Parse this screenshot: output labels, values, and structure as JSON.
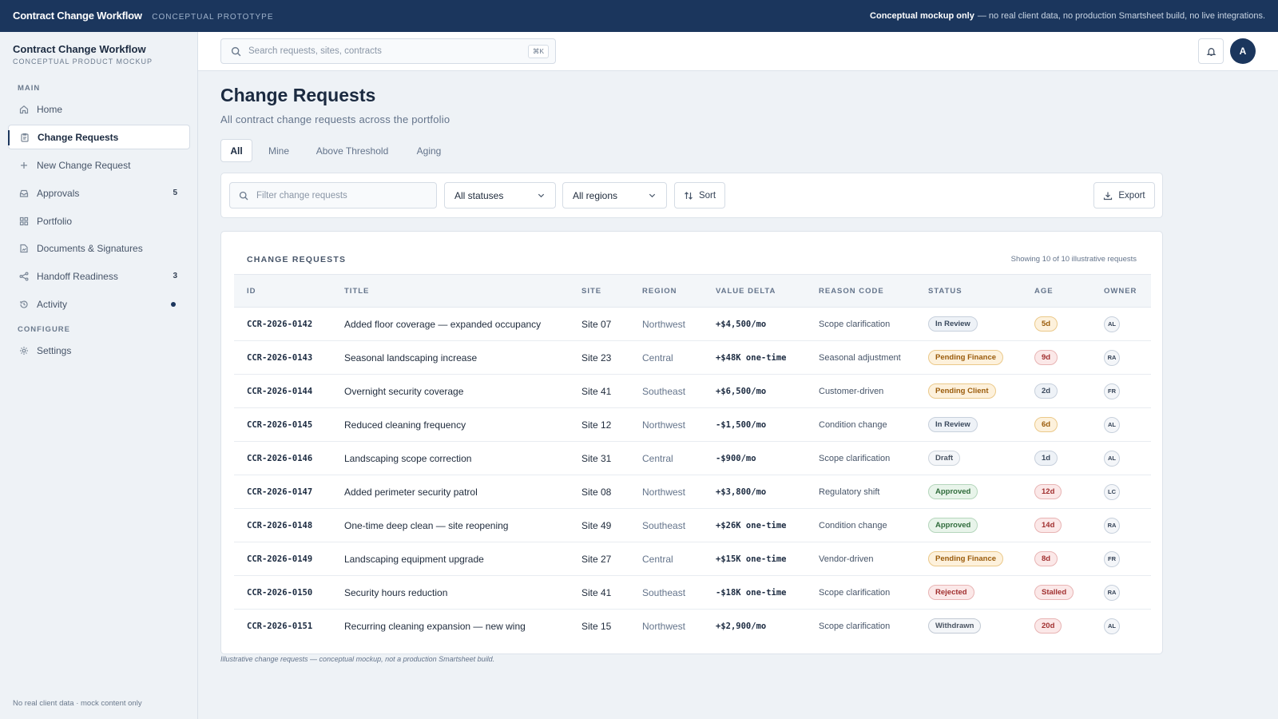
{
  "banner": {
    "title": "Contract Change Workflow",
    "subtitle": "CONCEPTUAL PROTOTYPE",
    "note_bold": "Conceptual mockup only",
    "note": "— no real client data, no production Smartsheet build, no live integrations."
  },
  "sidebar": {
    "brand_title": "Contract Change Workflow",
    "brand_subtitle": "CONCEPTUAL PRODUCT MOCKUP",
    "section_main": "MAIN",
    "section_configure": "CONFIGURE",
    "items": [
      {
        "label": "Home",
        "icon": "home-icon"
      },
      {
        "label": "Change Requests",
        "icon": "clipboard-icon",
        "active": true
      },
      {
        "label": "New Change Request",
        "icon": "plus-icon"
      },
      {
        "label": "Approvals",
        "icon": "inbox-icon",
        "badge": "5"
      },
      {
        "label": "Portfolio",
        "icon": "grid-icon"
      },
      {
        "label": "Documents & Signatures",
        "icon": "document-sign-icon"
      },
      {
        "label": "Handoff Readiness",
        "icon": "share-icon",
        "badge": "3"
      },
      {
        "label": "Activity",
        "icon": "history-icon",
        "dot": true
      },
      {
        "label": "Settings",
        "icon": "gear-icon"
      }
    ],
    "footer": "No real client data · mock content only"
  },
  "header": {
    "search_placeholder": "Search requests, sites, contracts",
    "shortcut": "⌘K",
    "avatar": "A"
  },
  "page": {
    "title": "Change Requests",
    "subtitle": "All contract change requests across the portfolio",
    "tabs": [
      "All",
      "Mine",
      "Above Threshold",
      "Aging"
    ]
  },
  "filters": {
    "search_placeholder": "Filter change requests",
    "status": "All statuses",
    "region": "All regions",
    "sort": "Sort",
    "export": "Export"
  },
  "table": {
    "title": "CHANGE REQUESTS",
    "count": "Showing 10 of 10 illustrative requests",
    "columns": [
      "ID",
      "TITLE",
      "SITE",
      "REGION",
      "VALUE DELTA",
      "REASON CODE",
      "STATUS",
      "AGE",
      "OWNER"
    ],
    "rows": [
      {
        "id": "CCR-2026-0142",
        "title": "Added floor coverage — expanded occupancy",
        "site": "Site 07",
        "region": "Northwest",
        "value": "+$4,500/mo",
        "reason": "Scope clarification",
        "status": "In Review",
        "age": "5d",
        "owner": "AL"
      },
      {
        "id": "CCR-2026-0143",
        "title": "Seasonal landscaping increase",
        "site": "Site 23",
        "region": "Central",
        "value": "+$48K one-time",
        "reason": "Seasonal adjustment",
        "status": "Pending Finance",
        "age": "9d",
        "owner": "RA"
      },
      {
        "id": "CCR-2026-0144",
        "title": "Overnight security coverage",
        "site": "Site 41",
        "region": "Southeast",
        "value": "+$6,500/mo",
        "reason": "Customer-driven",
        "status": "Pending Client",
        "age": "2d",
        "owner": "FR"
      },
      {
        "id": "CCR-2026-0145",
        "title": "Reduced cleaning frequency",
        "site": "Site 12",
        "region": "Northwest",
        "value": "-$1,500/mo",
        "reason": "Condition change",
        "status": "In Review",
        "age": "6d",
        "owner": "AL"
      },
      {
        "id": "CCR-2026-0146",
        "title": "Landscaping scope correction",
        "site": "Site 31",
        "region": "Central",
        "value": "-$900/mo",
        "reason": "Scope clarification",
        "status": "Draft",
        "age": "1d",
        "owner": "AL"
      },
      {
        "id": "CCR-2026-0147",
        "title": "Added perimeter security patrol",
        "site": "Site 08",
        "region": "Northwest",
        "value": "+$3,800/mo",
        "reason": "Regulatory shift",
        "status": "Approved",
        "age": "12d",
        "owner": "LC"
      },
      {
        "id": "CCR-2026-0148",
        "title": "One-time deep clean — site reopening",
        "site": "Site 49",
        "region": "Southeast",
        "value": "+$26K one-time",
        "reason": "Condition change",
        "status": "Approved",
        "age": "14d",
        "owner": "RA"
      },
      {
        "id": "CCR-2026-0149",
        "title": "Landscaping equipment upgrade",
        "site": "Site 27",
        "region": "Central",
        "value": "+$15K one-time",
        "reason": "Vendor-driven",
        "status": "Pending Finance",
        "age": "8d",
        "owner": "FR"
      },
      {
        "id": "CCR-2026-0150",
        "title": "Security hours reduction",
        "site": "Site 41",
        "region": "Southeast",
        "value": "-$18K one-time",
        "reason": "Scope clarification",
        "status": "Rejected",
        "age": "Stalled",
        "owner": "RA"
      },
      {
        "id": "CCR-2026-0151",
        "title": "Recurring cleaning expansion — new wing",
        "site": "Site 15",
        "region": "Northwest",
        "value": "+$2,900/mo",
        "reason": "Scope clarification",
        "status": "Withdrawn",
        "age": "20d",
        "owner": "AL"
      }
    ],
    "footnote": "Illustrative change requests — conceptual mockup, not a production Smartsheet build."
  },
  "colors": {
    "brand": "#1b365d",
    "warn": "#9a5b0a",
    "danger": "#a13030",
    "success": "#2f6b3b"
  }
}
